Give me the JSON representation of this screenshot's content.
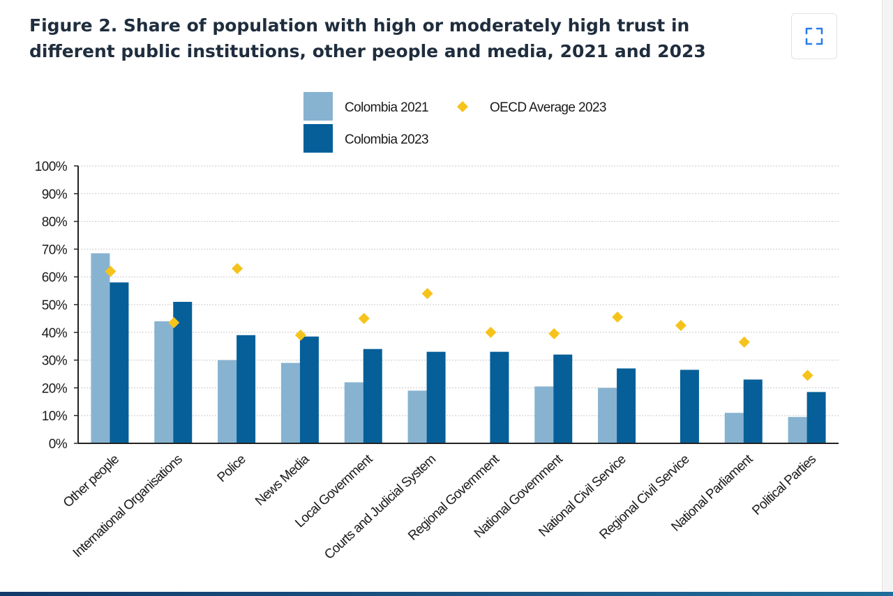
{
  "figure": {
    "title": "Figure 2. Share of population with high or moderately high trust in different public institutions, other people and media, 2021 and 2023"
  },
  "icons": {
    "expand": "expand-icon"
  },
  "colors": {
    "colombia_2021": "#87b3d1",
    "colombia_2023": "#065f98",
    "oecd_2023": "#f5c31b",
    "axis": "#222222",
    "grid": "#c8c8c8",
    "title": "#1f2d3d"
  },
  "chart_data": {
    "type": "bar",
    "title": "",
    "xlabel": "",
    "ylabel": "",
    "ylim": [
      0,
      100
    ],
    "y_ticks": [
      0,
      10,
      20,
      30,
      40,
      50,
      60,
      70,
      80,
      90,
      100
    ],
    "y_tick_labels": [
      "0%",
      "10%",
      "20%",
      "30%",
      "40%",
      "50%",
      "60%",
      "70%",
      "80%",
      "90%",
      "100%"
    ],
    "grid": true,
    "legend_position": "top-center",
    "categories": [
      "Other people",
      "International Organisations",
      "Police",
      "News Media",
      "Local Government",
      "Courts and Judicial System",
      "Regional Government",
      "National Government",
      "National Civil Service",
      "Regional Civil Service",
      "National Parliament",
      "Political Parties"
    ],
    "series": [
      {
        "name": "Colombia 2021",
        "kind": "bar",
        "values": [
          68.5,
          44,
          30,
          29,
          22,
          19,
          null,
          20.5,
          20,
          null,
          11,
          9.5
        ]
      },
      {
        "name": "Colombia 2023",
        "kind": "bar",
        "values": [
          58,
          51,
          39,
          38.5,
          34,
          33,
          33,
          32,
          27,
          26.5,
          23,
          18.5
        ]
      },
      {
        "name": "OECD Average 2023",
        "kind": "marker",
        "values": [
          62,
          43.5,
          63,
          39,
          45,
          54,
          40,
          39.5,
          45.5,
          42.5,
          36.5,
          24.5
        ]
      }
    ]
  }
}
